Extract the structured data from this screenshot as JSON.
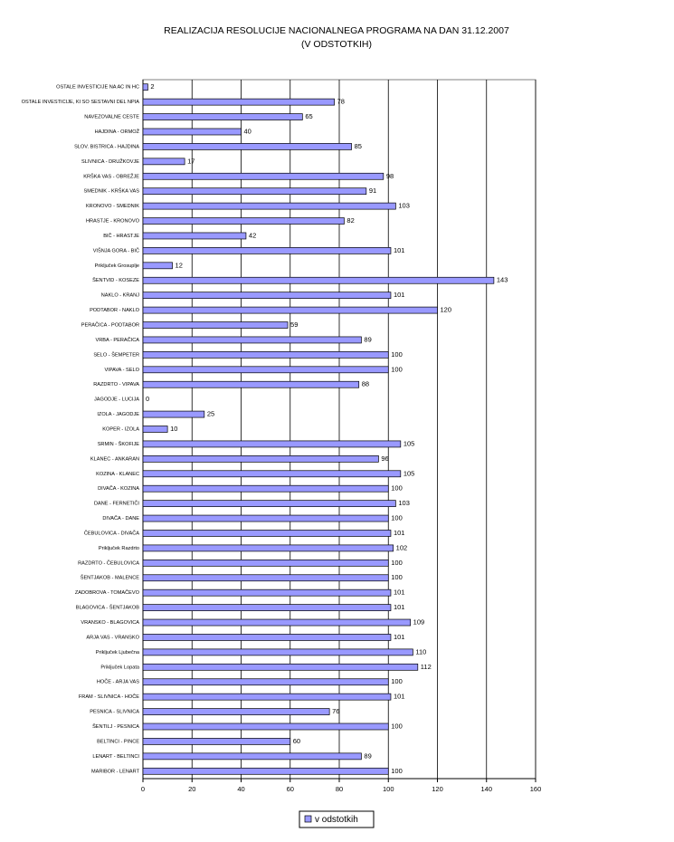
{
  "chart_data": {
    "type": "bar",
    "orientation": "horizontal",
    "title": "REALIZACIJA RESOLUCIJE NACIONALNEGA PROGRAMA NA DAN 31.12.2007",
    "subtitle": "(V ODSTOTKIH)",
    "categories": [
      "OSTALE INVESTICIJE NA AC IN HC",
      "OSTALE INVESTICIJE, KI SO SESTAVNI DEL NPIA",
      "NAVEZOVALNE CESTE",
      "HAJDINA - ORMOŽ",
      "SLOV. BISTRICA - HAJDINA",
      "SLIVNICA - DRUŽKOVJE",
      "KRŠKA VAS - OBREŽJE",
      "SMEDNIK - KRŠKA VAS",
      "KRONOVO - SMEDNIK",
      "HRASTJE - KRONOVO",
      "BIČ - HRASTJE",
      "VIŠNJA GORA - BIČ",
      "Priključek Grosuplje",
      "ŠENTVID - KOSEZE",
      "NAKLO - KRANJ",
      "PODTABOR - NAKLO",
      "PERAČICA - PODTABOR",
      "VRBA - PERAČICA",
      "SELO - ŠEMPETER",
      "VIPAVA - SELO",
      "RAZDRTO - VIPAVA",
      "JAGODJE - LUCIJA",
      "IZOLA - JAGODJE",
      "KOPER - IZOLA",
      "SRMIN - ŠKOFIJE",
      "KLANEC - ANKARAN",
      "KOZINA - KLANEC",
      "DIVAČA - KOZINA",
      "DANE - FERNETIČI",
      "DIVAČA - DANE",
      "ČEBULOVICA - DIVAČA",
      "Priključek Razdrto",
      "RAZDRTO - ČEBULOVICA",
      "ŠENTJAKOB - MALENCE",
      "ZADOBROVA - TOMAČEVO",
      "BLAGOVICA - ŠENTJAKOB",
      "VRANSKO - BLAGOVICA",
      "ARJA VAS - VRANSKO",
      "Priključek Ljubečna",
      "Priključek Lopata",
      "HOČE - ARJA VAS",
      "FRAM - SLIVNICA - HOČE",
      "PESNICA - SLIVNICA",
      "ŠENTILJ - PESNICA",
      "BELTINCI - PINCE",
      "LENART - BELTINCI",
      "MARIBOR - LENART"
    ],
    "series": [
      {
        "name": "v odstotkih",
        "color": "#9999ff",
        "values": [
          2,
          78,
          65,
          40,
          85,
          17,
          98,
          91,
          103,
          82,
          42,
          101,
          12,
          143,
          101,
          120,
          59,
          89,
          100,
          100,
          88,
          0,
          25,
          10,
          105,
          96,
          105,
          100,
          103,
          100,
          101,
          102,
          100,
          100,
          101,
          101,
          109,
          101,
          110,
          112,
          100,
          101,
          76,
          100,
          60,
          89,
          100
        ]
      }
    ],
    "xlim": [
      0,
      160
    ],
    "xticks": [
      0,
      20,
      40,
      60,
      80,
      100,
      120,
      140,
      160
    ],
    "grid": true,
    "legend": "bottom"
  }
}
